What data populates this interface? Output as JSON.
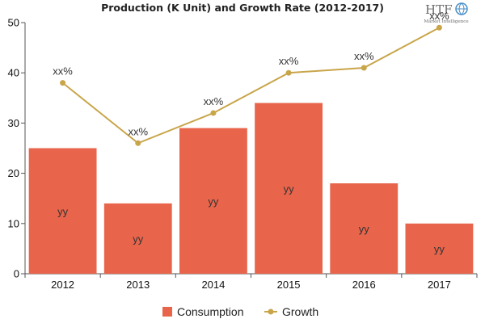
{
  "chart_data": {
    "type": "bar",
    "title": "Production (K Unit) and Growth Rate (2012-2017)",
    "categories": [
      "2012",
      "2013",
      "2014",
      "2015",
      "2016",
      "2017"
    ],
    "ylim": [
      0,
      50
    ],
    "yticks": [
      0,
      10,
      20,
      30,
      40,
      50
    ],
    "xlabel": "",
    "ylabel": "",
    "grid": false,
    "legend_position": "bottom",
    "series": [
      {
        "name": "Consumption",
        "type": "bar",
        "color": "#E8654B",
        "values": [
          25,
          14,
          29,
          34,
          18,
          10
        ],
        "labels": [
          "yy",
          "yy",
          "yy",
          "yy",
          "yy",
          "yy"
        ]
      },
      {
        "name": "Growth",
        "type": "line",
        "color": "#C9A54A",
        "values": [
          38,
          26,
          32,
          40,
          41,
          49
        ],
        "labels": [
          "xx%",
          "xx%",
          "xx%",
          "xx%",
          "xx%",
          "xx%"
        ]
      }
    ]
  },
  "logo": {
    "text": "HTF",
    "subtitle": "Market Intelligence"
  }
}
